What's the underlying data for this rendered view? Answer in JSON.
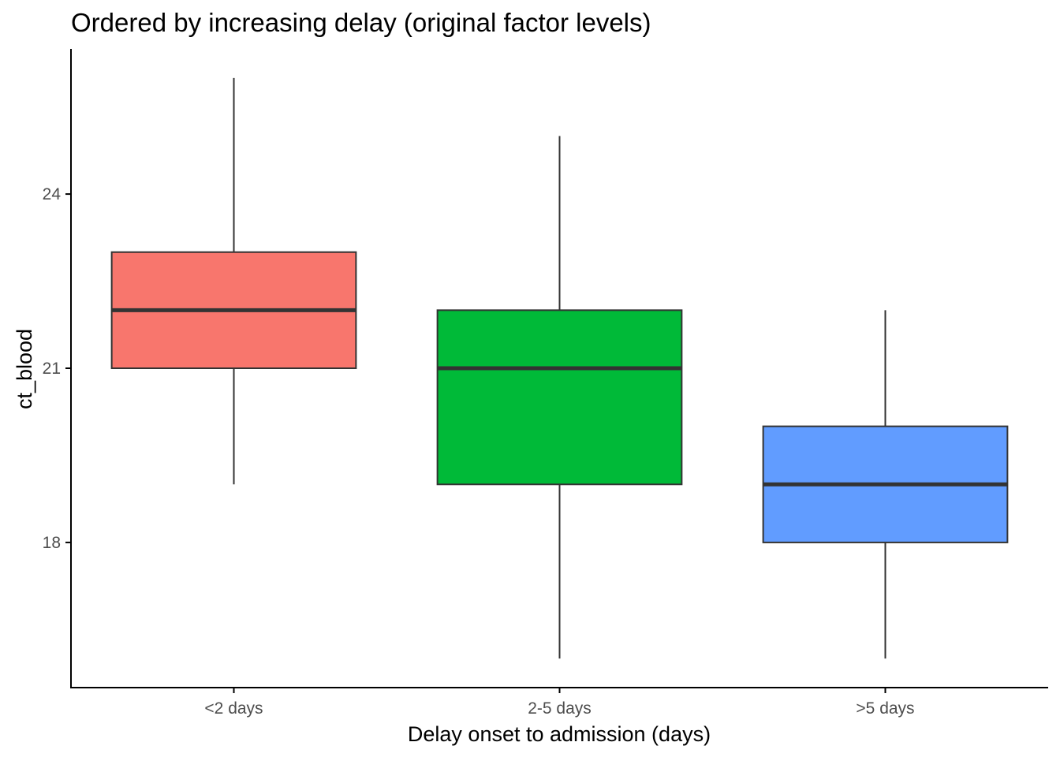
{
  "chart_data": {
    "type": "box",
    "title": "Ordered by increasing delay (original factor levels)",
    "xlabel": "Delay onset to admission (days)",
    "ylabel": "ct_blood",
    "categories": [
      "<2 days",
      "2-5 days",
      ">5 days"
    ],
    "boxes": [
      {
        "category": "<2 days",
        "min": 19,
        "q1": 21,
        "median": 22,
        "q3": 23,
        "max": 26,
        "fill": "#F8766D"
      },
      {
        "category": "2-5 days",
        "min": 16,
        "q1": 19,
        "median": 21,
        "q3": 22,
        "max": 25,
        "fill": "#00BA38"
      },
      {
        "category": ">5 days",
        "min": 16,
        "q1": 18,
        "median": 19,
        "q3": 20,
        "max": 22,
        "fill": "#619CFF"
      }
    ],
    "yticks": [
      18,
      21,
      24
    ],
    "ylim": [
      15.5,
      26.5
    ],
    "grid": false,
    "legend": "none",
    "colors": {
      "box_outline": "#333333",
      "median_line": "#333333",
      "whisker": "#333333",
      "axis": "#000000",
      "tick_label": "#4d4d4d"
    }
  }
}
